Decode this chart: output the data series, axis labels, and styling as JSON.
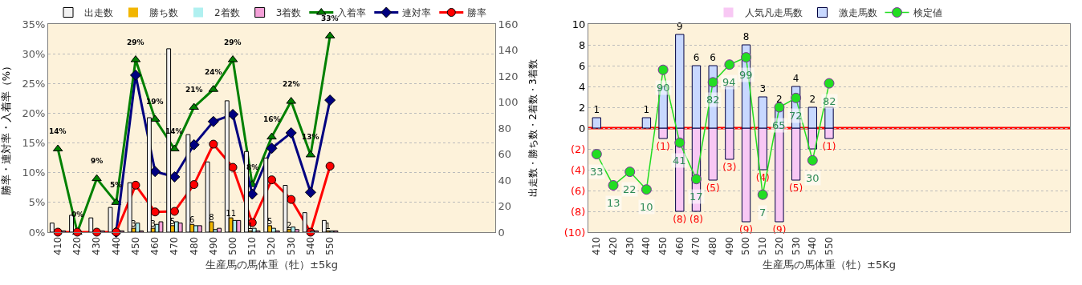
{
  "chart_data": [
    {
      "type": "bar",
      "categories": [
        "410",
        "420",
        "430",
        "440",
        "450",
        "460",
        "470",
        "480",
        "490",
        "500",
        "510",
        "520",
        "530",
        "540",
        "550",
        null,
        null,
        null,
        null,
        null,
        null,
        null,
        null
      ],
      "xlabel": "生産馬の馬体重（牡）±5kg",
      "ylabel": "勝率・連対率・入着率（%）",
      "y2label": "出走数・勝ち数・2着数・3着数",
      "ylim": [
        0,
        35
      ],
      "yticks": [
        {
          "value": 0,
          "label": "0%"
        },
        {
          "value": 5,
          "label": "5%"
        },
        {
          "value": 10,
          "label": "10%"
        },
        {
          "value": 15,
          "label": "15%"
        },
        {
          "value": 20,
          "label": "20%"
        },
        {
          "value": 25,
          "label": "25%"
        },
        {
          "value": 30,
          "label": "30%"
        },
        {
          "value": 35,
          "label": "35%"
        }
      ],
      "y2lim": [
        0,
        160
      ],
      "y2ticks": [
        0,
        20,
        40,
        60,
        80,
        100,
        120,
        140,
        160
      ],
      "grid": true,
      "legend": "top",
      "series": [
        {
          "name": "出走数",
          "axis": "y2",
          "color": "#f2f2f2",
          "values": [
            7,
            13,
            11,
            19,
            38,
            88,
            141,
            75,
            54,
            101,
            62,
            57,
            36,
            15,
            9,
            null,
            null,
            null,
            null,
            null,
            null,
            null,
            null
          ]
        },
        {
          "name": "勝ち数",
          "axis": "y2",
          "color": "#f2b600",
          "values": [
            0,
            0,
            0,
            0,
            3,
            3,
            5,
            6,
            8,
            11,
            1,
            5,
            2,
            0,
            1,
            null,
            null,
            null,
            null,
            null,
            null,
            null,
            null
          ],
          "value_labels": [
            null,
            null,
            null,
            null,
            "3",
            "3",
            "5",
            "6",
            "8",
            "11",
            "1",
            "5",
            "2",
            null,
            "1",
            null,
            null,
            null,
            null,
            null,
            null,
            null,
            null
          ]
        },
        {
          "name": "2着数",
          "axis": "y2",
          "color": "#b0f0f0",
          "values": [
            0,
            0,
            0,
            0,
            7,
            6,
            8,
            5,
            2,
            9,
            3,
            3,
            4,
            1,
            1,
            null,
            null,
            null,
            null,
            null,
            null,
            null,
            null
          ]
        },
        {
          "name": "3着数",
          "axis": "y2",
          "color": "#f4a0d8",
          "values": [
            1,
            0,
            1,
            1,
            1,
            8,
            7,
            5,
            3,
            9,
            1,
            1,
            2,
            1,
            1,
            null,
            null,
            null,
            null,
            null,
            null,
            null,
            null
          ]
        },
        {
          "name": "入着率",
          "type": "line",
          "axis": "y",
          "color": "#008000",
          "marker": "triangle",
          "values": [
            14,
            0,
            9,
            5,
            29,
            19,
            14,
            21,
            24,
            29,
            8,
            16,
            22,
            13,
            33,
            null,
            null,
            null,
            null,
            null,
            null,
            null,
            null
          ],
          "value_labels": [
            "14%",
            "0%",
            "9%",
            "5%",
            "29%",
            "19%",
            "14%",
            "21%",
            "24%",
            "29%",
            "8%",
            "16%",
            "22%",
            "13%",
            "33%",
            null,
            null,
            null,
            null,
            null,
            null,
            null,
            null
          ]
        },
        {
          "name": "連対率",
          "type": "line",
          "axis": "y",
          "color": "#000080",
          "marker": "diamond",
          "values": [
            null,
            null,
            null,
            0,
            26.4,
            10.2,
            9.3,
            14.7,
            18.6,
            19.8,
            6.4,
            14.1,
            16.7,
            6.7,
            22.2,
            null,
            null,
            null,
            null,
            null,
            null,
            null,
            null
          ]
        },
        {
          "name": "勝率",
          "type": "line",
          "axis": "y",
          "color": "#ff0000",
          "marker": "circle",
          "values": [
            0,
            0,
            0,
            0,
            7.9,
            3.4,
            3.5,
            8.0,
            14.8,
            10.9,
            1.6,
            8.8,
            5.5,
            0,
            11.1,
            null,
            null,
            null,
            null,
            null,
            null,
            null,
            null
          ]
        }
      ]
    },
    {
      "type": "bar",
      "categories": [
        "410",
        "420",
        "430",
        "440",
        "450",
        "460",
        "470",
        "480",
        "490",
        "500",
        "510",
        "520",
        "530",
        "540",
        "550",
        null,
        null,
        null,
        null,
        null,
        null,
        null,
        null,
        null,
        null,
        null,
        null,
        null,
        null
      ],
      "xlabel": "生産馬の馬体重（牡）±5Kg",
      "ylim": [
        -10,
        10
      ],
      "yticks": [
        {
          "value": 10,
          "label": "10"
        },
        {
          "value": 8,
          "label": "8"
        },
        {
          "value": 6,
          "label": "6"
        },
        {
          "value": 4,
          "label": "4"
        },
        {
          "value": 2,
          "label": "2"
        },
        {
          "value": 0,
          "label": "0"
        },
        {
          "value": -2,
          "label": "(2)"
        },
        {
          "value": -4,
          "label": "(4)"
        },
        {
          "value": -6,
          "label": "(6)"
        },
        {
          "value": -8,
          "label": "(8)"
        },
        {
          "value": -10,
          "label": "(10)"
        }
      ],
      "grid": true,
      "legend": "top",
      "ref_lines": [
        {
          "axis": "y",
          "value": 0,
          "color": "#ff0000"
        }
      ],
      "annotations": [
        {
          "text": "33",
          "x": "410",
          "y": -2.5
        },
        {
          "text": "13",
          "x": "420",
          "y": -5.5
        },
        {
          "text": "22",
          "x": "430",
          "y": -4.2
        },
        {
          "text": "10",
          "x": "440",
          "y": -5.9
        },
        {
          "text": "90",
          "x": "450",
          "y": 5.6
        },
        {
          "text": "41",
          "x": "460",
          "y": -1.4
        },
        {
          "text": "17",
          "x": "470",
          "y": -4.9
        },
        {
          "text": "82",
          "x": "480",
          "y": 4.4
        },
        {
          "text": "94",
          "x": "490",
          "y": 6.1
        },
        {
          "text": "99",
          "x": "500",
          "y": 6.8
        },
        {
          "text": "7",
          "x": "510",
          "y": -6.4
        },
        {
          "text": "65",
          "x": "520",
          "y": 2.0
        },
        {
          "text": "72",
          "x": "530",
          "y": 2.9
        },
        {
          "text": "30",
          "x": "540",
          "y": -3.1
        },
        {
          "text": "82",
          "x": "550",
          "y": 4.3
        }
      ],
      "series": [
        {
          "name": "人気凡走馬数",
          "color": "#f8c8f4",
          "values": [
            0,
            0,
            0,
            0,
            -1,
            -8,
            -8,
            -5,
            -3,
            -9,
            -4,
            -9,
            -5,
            -2,
            -1,
            null,
            null,
            null,
            null,
            null,
            null,
            null,
            null,
            null,
            null,
            null,
            null,
            null,
            null
          ],
          "value_labels": [
            null,
            null,
            null,
            null,
            "(1)",
            "(8)",
            "(8)",
            "(5)",
            "(3)",
            "(9)",
            "(4)",
            "(9)",
            "(5)",
            null,
            "(1)",
            null,
            null,
            null,
            null,
            null,
            null,
            null,
            null,
            null,
            null,
            null,
            null,
            null,
            null
          ]
        },
        {
          "name": "激走馬数",
          "color": "#c8d8ff",
          "values": [
            1,
            0,
            0,
            1,
            4,
            9,
            6,
            6,
            4,
            8,
            3,
            2,
            4,
            2,
            2,
            null,
            null,
            null,
            null,
            null,
            null,
            null,
            null,
            null,
            null,
            null,
            null,
            null,
            null
          ],
          "value_labels": [
            "1",
            null,
            null,
            "1",
            null,
            "9",
            "6",
            "6",
            null,
            "8",
            "3",
            "2",
            "4",
            "2",
            null,
            null,
            null,
            null,
            null,
            null,
            null,
            null,
            null,
            null,
            null,
            null,
            null,
            null,
            null
          ]
        },
        {
          "name": "検定値",
          "type": "line",
          "color": "#22dd22",
          "marker": "circle",
          "values": [
            -2.5,
            -5.5,
            -4.2,
            -5.9,
            5.6,
            -1.4,
            -4.9,
            4.4,
            6.1,
            6.8,
            -6.4,
            2.0,
            2.9,
            -3.1,
            4.3,
            null,
            null,
            null,
            null,
            null,
            null,
            null,
            null,
            null,
            null,
            null,
            null,
            null,
            null
          ]
        }
      ]
    }
  ]
}
